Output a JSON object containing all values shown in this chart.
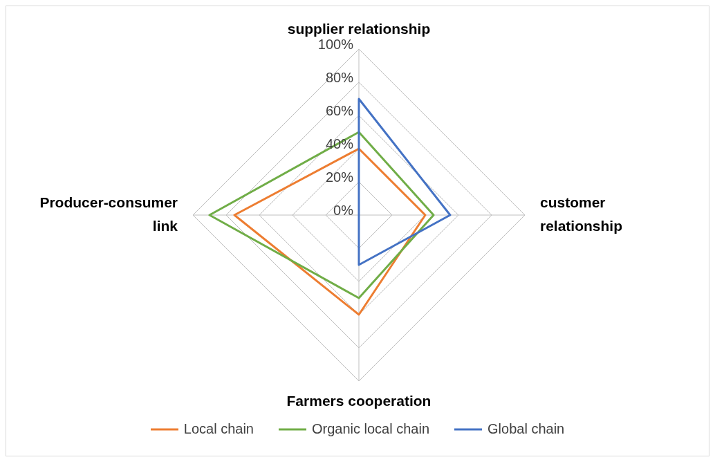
{
  "chart_data": {
    "type": "radar",
    "categories": [
      "supplier relationship",
      "customer relationship",
      "Farmers cooperation",
      "Producer-consumer link"
    ],
    "series": [
      {
        "name": "Local chain",
        "color": "#ed7d31",
        "values": [
          40,
          40,
          60,
          75
        ]
      },
      {
        "name": "Organic local chain",
        "color": "#70ad47",
        "values": [
          50,
          45,
          50,
          90
        ]
      },
      {
        "name": "Global chain",
        "color": "#4472c4",
        "values": [
          70,
          55,
          30,
          0
        ]
      }
    ],
    "ylim": [
      0,
      100
    ],
    "yticks": [
      {
        "value": 0,
        "label": "0%"
      },
      {
        "value": 20,
        "label": "20%"
      },
      {
        "value": 40,
        "label": "40%"
      },
      {
        "value": 60,
        "label": "60%"
      },
      {
        "value": 80,
        "label": "80%"
      },
      {
        "value": 100,
        "label": "100%"
      }
    ],
    "grid": true,
    "legend": "bottom",
    "marker": "none",
    "line_style": "solid"
  }
}
